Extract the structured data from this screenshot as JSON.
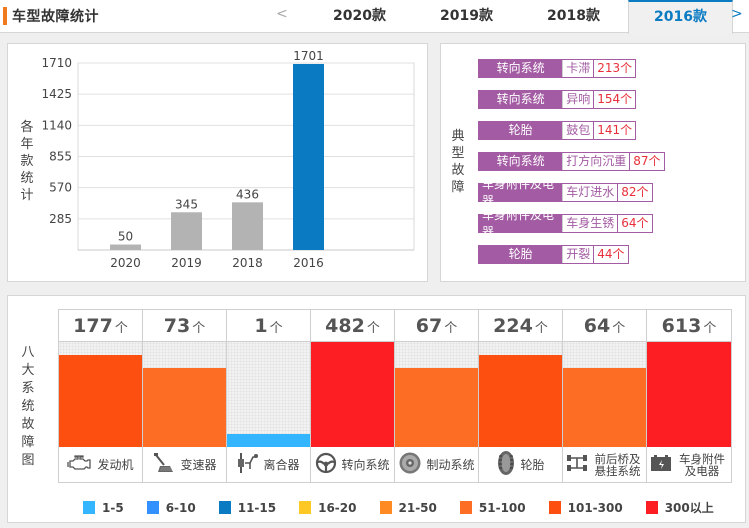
{
  "header": {
    "title": "车型故障统计",
    "prev": "<",
    "next": ">",
    "tabs": [
      {
        "label": "2020款",
        "active": false
      },
      {
        "label": "2019款",
        "active": false
      },
      {
        "label": "2018款",
        "active": false
      },
      {
        "label": "2016款",
        "active": true
      }
    ]
  },
  "year_panel": {
    "label": "各年款统计"
  },
  "chart_data": {
    "type": "bar",
    "title": "",
    "xlabel": "",
    "ylabel": "各年款统计",
    "categories": [
      "2020",
      "2019",
      "2018",
      "2016"
    ],
    "values": [
      50,
      345,
      436,
      1701
    ],
    "yticks": [
      285,
      570,
      855,
      1140,
      1425,
      1710
    ],
    "ylim": [
      0,
      1710
    ],
    "grid": true,
    "highlight": "2016",
    "colors": {
      "default": "#b3b3b3",
      "highlight": "#0a7bc2"
    }
  },
  "typical_panel": {
    "label": "典型故障",
    "faults": [
      {
        "system": "转向系统",
        "issue": "卡滞",
        "count": "213个"
      },
      {
        "system": "转向系统",
        "issue": "异响",
        "count": "154个"
      },
      {
        "system": "轮胎",
        "issue": "鼓包",
        "count": "141个"
      },
      {
        "system": "转向系统",
        "issue": "打方向沉重",
        "count": "87个"
      },
      {
        "system": "车身附件及电器",
        "issue": "车灯进水",
        "count": "82个"
      },
      {
        "system": "车身附件及电器",
        "issue": "车身生锈",
        "count": "64个"
      },
      {
        "system": "轮胎",
        "issue": "开裂",
        "count": "44个"
      }
    ]
  },
  "eight_panel": {
    "label": "八大系统故障图",
    "unit": "个",
    "systems": [
      {
        "name": "发动机",
        "count": 177,
        "tier": "101-300",
        "icon": "engine-icon"
      },
      {
        "name": "变速器",
        "count": 73,
        "tier": "51-100",
        "icon": "gear-shifter-icon"
      },
      {
        "name": "离合器",
        "count": 1,
        "tier": "1-5",
        "icon": "clutch-pedal-icon"
      },
      {
        "name": "转向系统",
        "count": 482,
        "tier": "300以上",
        "icon": "steering-wheel-icon"
      },
      {
        "name": "制动系统",
        "count": 67,
        "tier": "51-100",
        "icon": "brake-disc-icon"
      },
      {
        "name": "轮胎",
        "count": 224,
        "tier": "101-300",
        "icon": "tire-icon"
      },
      {
        "name": "前后桥及悬挂系统",
        "count": 64,
        "tier": "51-100",
        "icon": "axle-icon"
      },
      {
        "name": "车身附件及电器",
        "count": 613,
        "tier": "300以上",
        "icon": "battery-icon"
      }
    ],
    "legend": [
      {
        "label": "1-5",
        "color": "#33b5ff",
        "fill_pct": 12
      },
      {
        "label": "6-10",
        "color": "#3390ff",
        "fill_pct": 25
      },
      {
        "label": "11-15",
        "color": "#0a7bc2",
        "fill_pct": 38
      },
      {
        "label": "16-20",
        "color": "#fdc823",
        "fill_pct": 50
      },
      {
        "label": "21-50",
        "color": "#fd8a23",
        "fill_pct": 62
      },
      {
        "label": "51-100",
        "color": "#fd6d23",
        "fill_pct": 75
      },
      {
        "label": "101-300",
        "color": "#fd5010",
        "fill_pct": 88
      },
      {
        "label": "300以上",
        "color": "#fd1e23",
        "fill_pct": 100
      }
    ]
  }
}
